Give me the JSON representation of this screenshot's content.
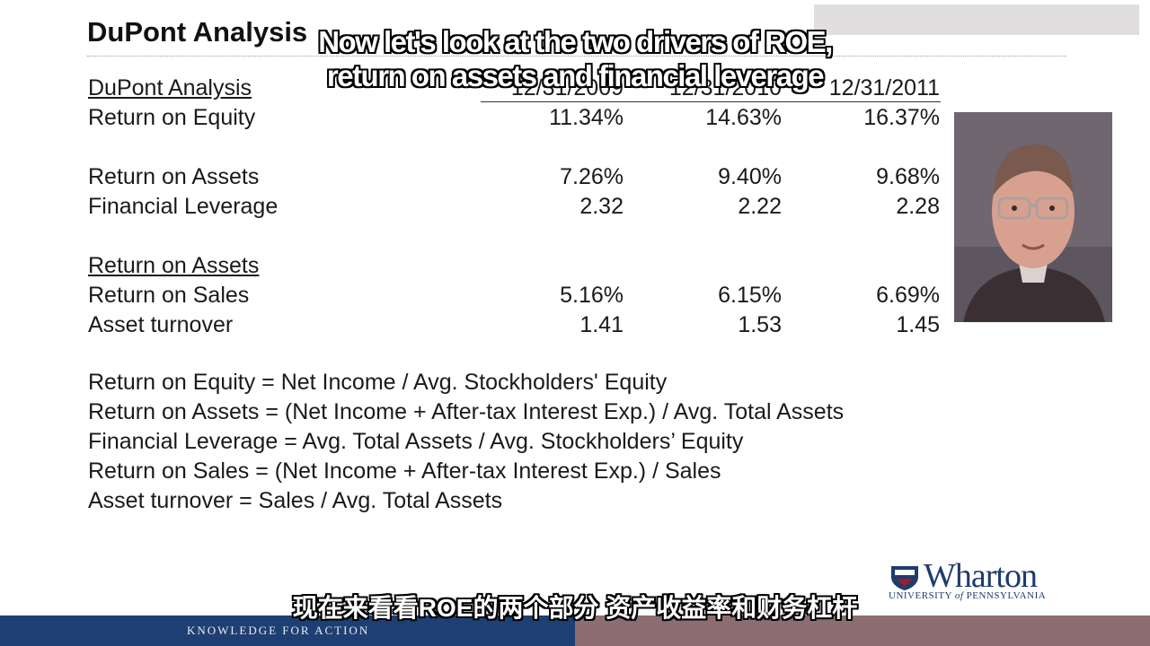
{
  "slide": {
    "title": "DuPont Analysis"
  },
  "table": {
    "section1_label": "DuPont Analysis",
    "dates": [
      "12/31/2009",
      "12/31/2010",
      "12/31/2011"
    ],
    "rows": [
      {
        "label": "Return on Equity",
        "values": [
          "11.34%",
          "14.63%",
          "16.37%"
        ]
      },
      {
        "label": "Return on Assets",
        "values": [
          "7.26%",
          "9.40%",
          "9.68%"
        ]
      },
      {
        "label": "Financial Leverage",
        "values": [
          "2.32",
          "2.22",
          "2.28"
        ]
      },
      {
        "label": "Return on Sales",
        "values": [
          "5.16%",
          "6.15%",
          "6.69%"
        ]
      },
      {
        "label": "Asset turnover",
        "values": [
          "1.41",
          "1.53",
          "1.45"
        ]
      }
    ],
    "section2_label": "Return on Assets"
  },
  "formulas": [
    "Return on Equity = Net Income / Avg. Stockholders' Equity",
    "Return on Assets = (Net Income + After-tax Interest Exp.) / Avg. Total Assets",
    "Financial Leverage = Avg. Total Assets / Avg. Stockholders’ Equity",
    "Return on Sales =  (Net Income + After-tax Interest Exp.) / Sales",
    "Asset turnover = Sales / Avg. Total Assets"
  ],
  "logo": {
    "word": "Wharton",
    "subtitle_pre": "UNIVERSITY ",
    "subtitle_of": "of",
    "subtitle_post": " PENNSYLVANIA"
  },
  "footer": {
    "tagline": "KNOWLEDGE FOR ACTION"
  },
  "subtitles": {
    "en_line1": "Now let's look at the two drivers of ROE,",
    "en_line2": "return on assets and financial leverage",
    "zh": "现在来看看ROE的两个部分 资产收益率和财务杠杆"
  },
  "colors": {
    "footer_blue": "#1e3f72",
    "footer_mauve": "#8c6e72",
    "logo_navy": "#1f3c6b"
  }
}
